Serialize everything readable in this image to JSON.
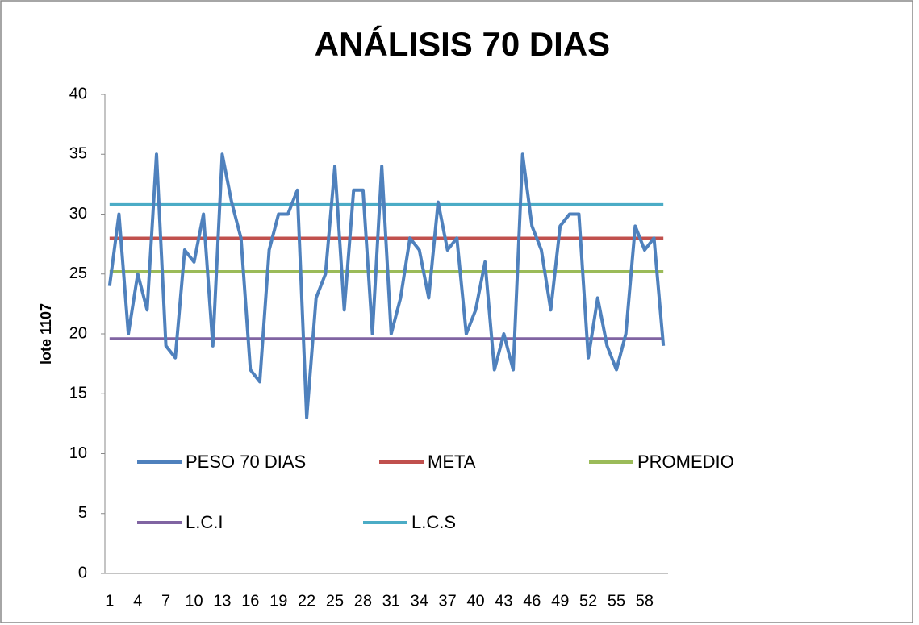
{
  "chart_data": {
    "type": "line",
    "title": "ANÁLISIS 70 DIAS",
    "y_label": "lote 1107",
    "categories": [
      1,
      null,
      null,
      4,
      null,
      null,
      7,
      null,
      null,
      10,
      null,
      null,
      13,
      null,
      null,
      16,
      null,
      null,
      19,
      null,
      null,
      22,
      null,
      null,
      25,
      null,
      null,
      28,
      null,
      null,
      31,
      null,
      null,
      34,
      null,
      null,
      37,
      null,
      null,
      40,
      null,
      null,
      43,
      null,
      null,
      46,
      null,
      null,
      49,
      null,
      null,
      52,
      null,
      null,
      55,
      null,
      null,
      58,
      null,
      null
    ],
    "series": [
      {
        "name": "PESO 70 DIAS",
        "color": "#4f81bd",
        "values": [
          24,
          30,
          20,
          25,
          22,
          35,
          19,
          18,
          27,
          26,
          30,
          19,
          35,
          31,
          28,
          17,
          16,
          27,
          30,
          30,
          32,
          13,
          23,
          25,
          34,
          22,
          32,
          32,
          20,
          34,
          20,
          23,
          28,
          27,
          23,
          31,
          27,
          28,
          20,
          22,
          26,
          17,
          20,
          17,
          35,
          29,
          27,
          22,
          29,
          30,
          30,
          18,
          23,
          19,
          17,
          20,
          29,
          27,
          28,
          19
        ]
      },
      {
        "name": "META",
        "color": "#c0504d",
        "values": [
          28,
          28,
          28,
          28,
          28,
          28,
          28,
          28,
          28,
          28,
          28,
          28,
          28,
          28,
          28,
          28,
          28,
          28,
          28,
          28,
          28,
          28,
          28,
          28,
          28,
          28,
          28,
          28,
          28,
          28,
          28,
          28,
          28,
          28,
          28,
          28,
          28,
          28,
          28,
          28,
          28,
          28,
          28,
          28,
          28,
          28,
          28,
          28,
          28,
          28,
          28,
          28,
          28,
          28,
          28,
          28,
          28,
          28,
          28,
          28
        ]
      },
      {
        "name": "PROMEDIO",
        "color": "#9bbb59",
        "values": [
          25.2,
          25.2,
          25.2,
          25.2,
          25.2,
          25.2,
          25.2,
          25.2,
          25.2,
          25.2,
          25.2,
          25.2,
          25.2,
          25.2,
          25.2,
          25.2,
          25.2,
          25.2,
          25.2,
          25.2,
          25.2,
          25.2,
          25.2,
          25.2,
          25.2,
          25.2,
          25.2,
          25.2,
          25.2,
          25.2,
          25.2,
          25.2,
          25.2,
          25.2,
          25.2,
          25.2,
          25.2,
          25.2,
          25.2,
          25.2,
          25.2,
          25.2,
          25.2,
          25.2,
          25.2,
          25.2,
          25.2,
          25.2,
          25.2,
          25.2,
          25.2,
          25.2,
          25.2,
          25.2,
          25.2,
          25.2,
          25.2,
          25.2,
          25.2,
          25.2
        ]
      },
      {
        "name": "L.C.I",
        "color": "#8064a2",
        "values": [
          19.6,
          19.6,
          19.6,
          19.6,
          19.6,
          19.6,
          19.6,
          19.6,
          19.6,
          19.6,
          19.6,
          19.6,
          19.6,
          19.6,
          19.6,
          19.6,
          19.6,
          19.6,
          19.6,
          19.6,
          19.6,
          19.6,
          19.6,
          19.6,
          19.6,
          19.6,
          19.6,
          19.6,
          19.6,
          19.6,
          19.6,
          19.6,
          19.6,
          19.6,
          19.6,
          19.6,
          19.6,
          19.6,
          19.6,
          19.6,
          19.6,
          19.6,
          19.6,
          19.6,
          19.6,
          19.6,
          19.6,
          19.6,
          19.6,
          19.6,
          19.6,
          19.6,
          19.6,
          19.6,
          19.6,
          19.6,
          19.6,
          19.6,
          19.6,
          19.6
        ]
      },
      {
        "name": "L.C.S",
        "color": "#4bacc6",
        "values": [
          30.8,
          30.8,
          30.8,
          30.8,
          30.8,
          30.8,
          30.8,
          30.8,
          30.8,
          30.8,
          30.8,
          30.8,
          30.8,
          30.8,
          30.8,
          30.8,
          30.8,
          30.8,
          30.8,
          30.8,
          30.8,
          30.8,
          30.8,
          30.8,
          30.8,
          30.8,
          30.8,
          30.8,
          30.8,
          30.8,
          30.8,
          30.8,
          30.8,
          30.8,
          30.8,
          30.8,
          30.8,
          30.8,
          30.8,
          30.8,
          30.8,
          30.8,
          30.8,
          30.8,
          30.8,
          30.8,
          30.8,
          30.8,
          30.8,
          30.8,
          30.8,
          30.8,
          30.8,
          30.8,
          30.8,
          30.8,
          30.8,
          30.8,
          30.8,
          30.8
        ]
      }
    ],
    "ylim": [
      0,
      40
    ],
    "yticks": [
      0,
      5,
      10,
      15,
      20,
      25,
      30,
      35,
      40
    ],
    "grid": false
  }
}
